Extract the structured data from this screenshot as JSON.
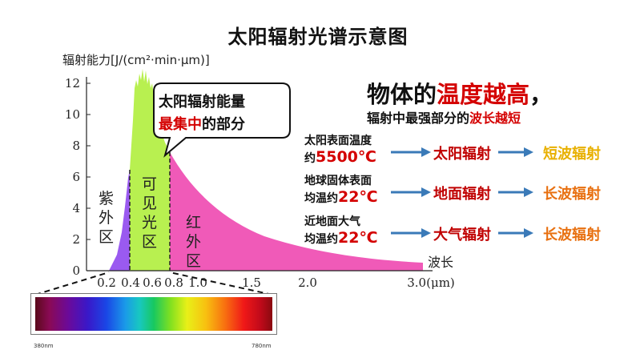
{
  "title": "太阳辐射光谱示意图",
  "y_axis": {
    "label": "辐射能力[J/(cm²·min·μm)]",
    "ticks": [
      "0",
      "2",
      "4",
      "6",
      "8",
      "10",
      "12"
    ]
  },
  "x_axis": {
    "label_top": "波长",
    "ticks": [
      "0.2",
      "0.4",
      "0.6",
      "0.8",
      "1.0",
      "1.5",
      "2.0",
      "3.0(μm)"
    ]
  },
  "regions": {
    "uv": [
      "紫",
      "外",
      "区"
    ],
    "visible": [
      "可",
      "见",
      "光",
      "区"
    ],
    "ir": [
      "红",
      "外",
      "区"
    ]
  },
  "colors": {
    "uv": "#9a5af0",
    "visible": "#b8f050",
    "ir": "#f05ab8",
    "red_text": "#d40000",
    "arrow": "#3a7ab8",
    "short_wave": "#e8b000",
    "long_wave": "#e87010"
  },
  "callout": {
    "line1": "太阳辐射能量",
    "line2_red": "最集中",
    "line2_rest": "的部分"
  },
  "headline": {
    "prefix": "物体的",
    "red": "温度越高",
    "suffix": "，"
  },
  "subline": {
    "prefix": "辐射中最强部分的",
    "red": "波长越短"
  },
  "rows": [
    {
      "src_line1": "太阳表面温度",
      "src_line2_prefix": "约",
      "src_temp": "5500℃",
      "radiation": "太阳辐射",
      "wave": "短波辐射",
      "wave_color": "#e8b000"
    },
    {
      "src_line1": "地球固体表面",
      "src_line2_prefix": "均温约",
      "src_temp": "22℃",
      "radiation": "地面辐射",
      "wave": "长波辐射",
      "wave_color": "#e87010"
    },
    {
      "src_line1": "近地面大气",
      "src_line2_prefix": "均温约",
      "src_temp": "22℃",
      "radiation": "大气辐射",
      "wave": "长波辐射",
      "wave_color": "#e87010"
    }
  ],
  "spectrum": {
    "left_label": "380nm",
    "right_label": "780nm"
  }
}
